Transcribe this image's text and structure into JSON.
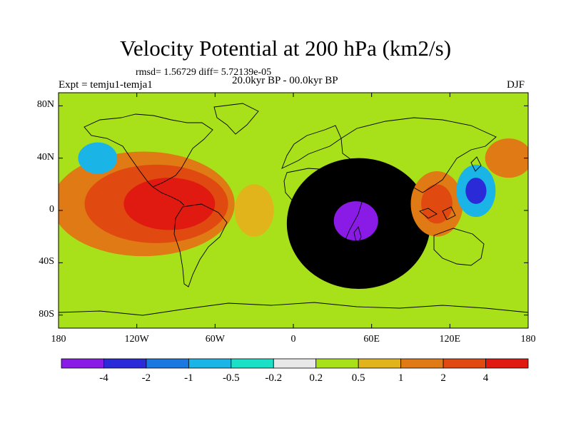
{
  "title": "Velocity Potential at 200 hPa (km2/s)",
  "stats": "rmsd= 1.56729 diff= 5.72139e-05",
  "experiment": "Expt = temju1-temja1",
  "period": "20.0kyr BP - 00.0kyr BP",
  "season": "DJF",
  "axes": {
    "x_ticks": [
      {
        "value": -180,
        "label": "180"
      },
      {
        "value": -120,
        "label": "120W"
      },
      {
        "value": -60,
        "label": "60W"
      },
      {
        "value": 0,
        "label": "0"
      },
      {
        "value": 60,
        "label": "60E"
      },
      {
        "value": 120,
        "label": "120E"
      },
      {
        "value": 180,
        "label": "180"
      }
    ],
    "y_ticks": [
      {
        "value": 80,
        "label": "80N"
      },
      {
        "value": 40,
        "label": "40N"
      },
      {
        "value": 0,
        "label": "0"
      },
      {
        "value": -40,
        "label": "40S"
      },
      {
        "value": -80,
        "label": "80S"
      }
    ],
    "lon_range": [
      -180,
      180
    ],
    "lat_range": [
      -90,
      90
    ]
  },
  "colorbar": {
    "colors": [
      "#8a1ae6",
      "#2a2ad8",
      "#1a78e0",
      "#1ab4e6",
      "#1ae0c8",
      "#e8e8e8",
      "#a8e01a",
      "#e0b41a",
      "#e07a14",
      "#e04a10",
      "#e01a10"
    ],
    "labels": [
      "-4",
      "-2",
      "-1",
      "-0.5",
      "-0.2",
      "0.2",
      "0.5",
      "1",
      "2",
      "4"
    ]
  },
  "field": {
    "background_color": "#a8e01a",
    "features": [
      {
        "lon": 50,
        "lat": -10,
        "rx": 55,
        "ry": 50,
        "level": -3
      },
      {
        "lon": 45,
        "lat": -12,
        "rx": 42,
        "ry": 40,
        "level": -2
      },
      {
        "lon": 45,
        "lat": -10,
        "rx": 30,
        "ry": 30,
        "level": -1
      },
      {
        "lon": 48,
        "lat": -8,
        "rx": 17,
        "ry": 15,
        "level": 0
      },
      {
        "lon": -115,
        "lat": 5,
        "rx": 70,
        "ry": 40,
        "level": 8
      },
      {
        "lon": -105,
        "lat": 5,
        "rx": 55,
        "ry": 30,
        "level": 9
      },
      {
        "lon": -95,
        "lat": 5,
        "rx": 35,
        "ry": 20,
        "level": 10
      },
      {
        "lon": 110,
        "lat": 5,
        "rx": 20,
        "ry": 25,
        "level": 8
      },
      {
        "lon": 110,
        "lat": 5,
        "rx": 12,
        "ry": 15,
        "level": 9
      },
      {
        "lon": 140,
        "lat": 15,
        "rx": 15,
        "ry": 20,
        "level": 3
      },
      {
        "lon": 140,
        "lat": 15,
        "rx": 8,
        "ry": 10,
        "level": 1
      },
      {
        "lon": -150,
        "lat": 40,
        "rx": 15,
        "ry": 12,
        "level": 3
      },
      {
        "lon": 165,
        "lat": 40,
        "rx": 18,
        "ry": 15,
        "level": 8
      },
      {
        "lon": -30,
        "lat": 0,
        "rx": 15,
        "ry": 20,
        "level": 7
      }
    ]
  }
}
